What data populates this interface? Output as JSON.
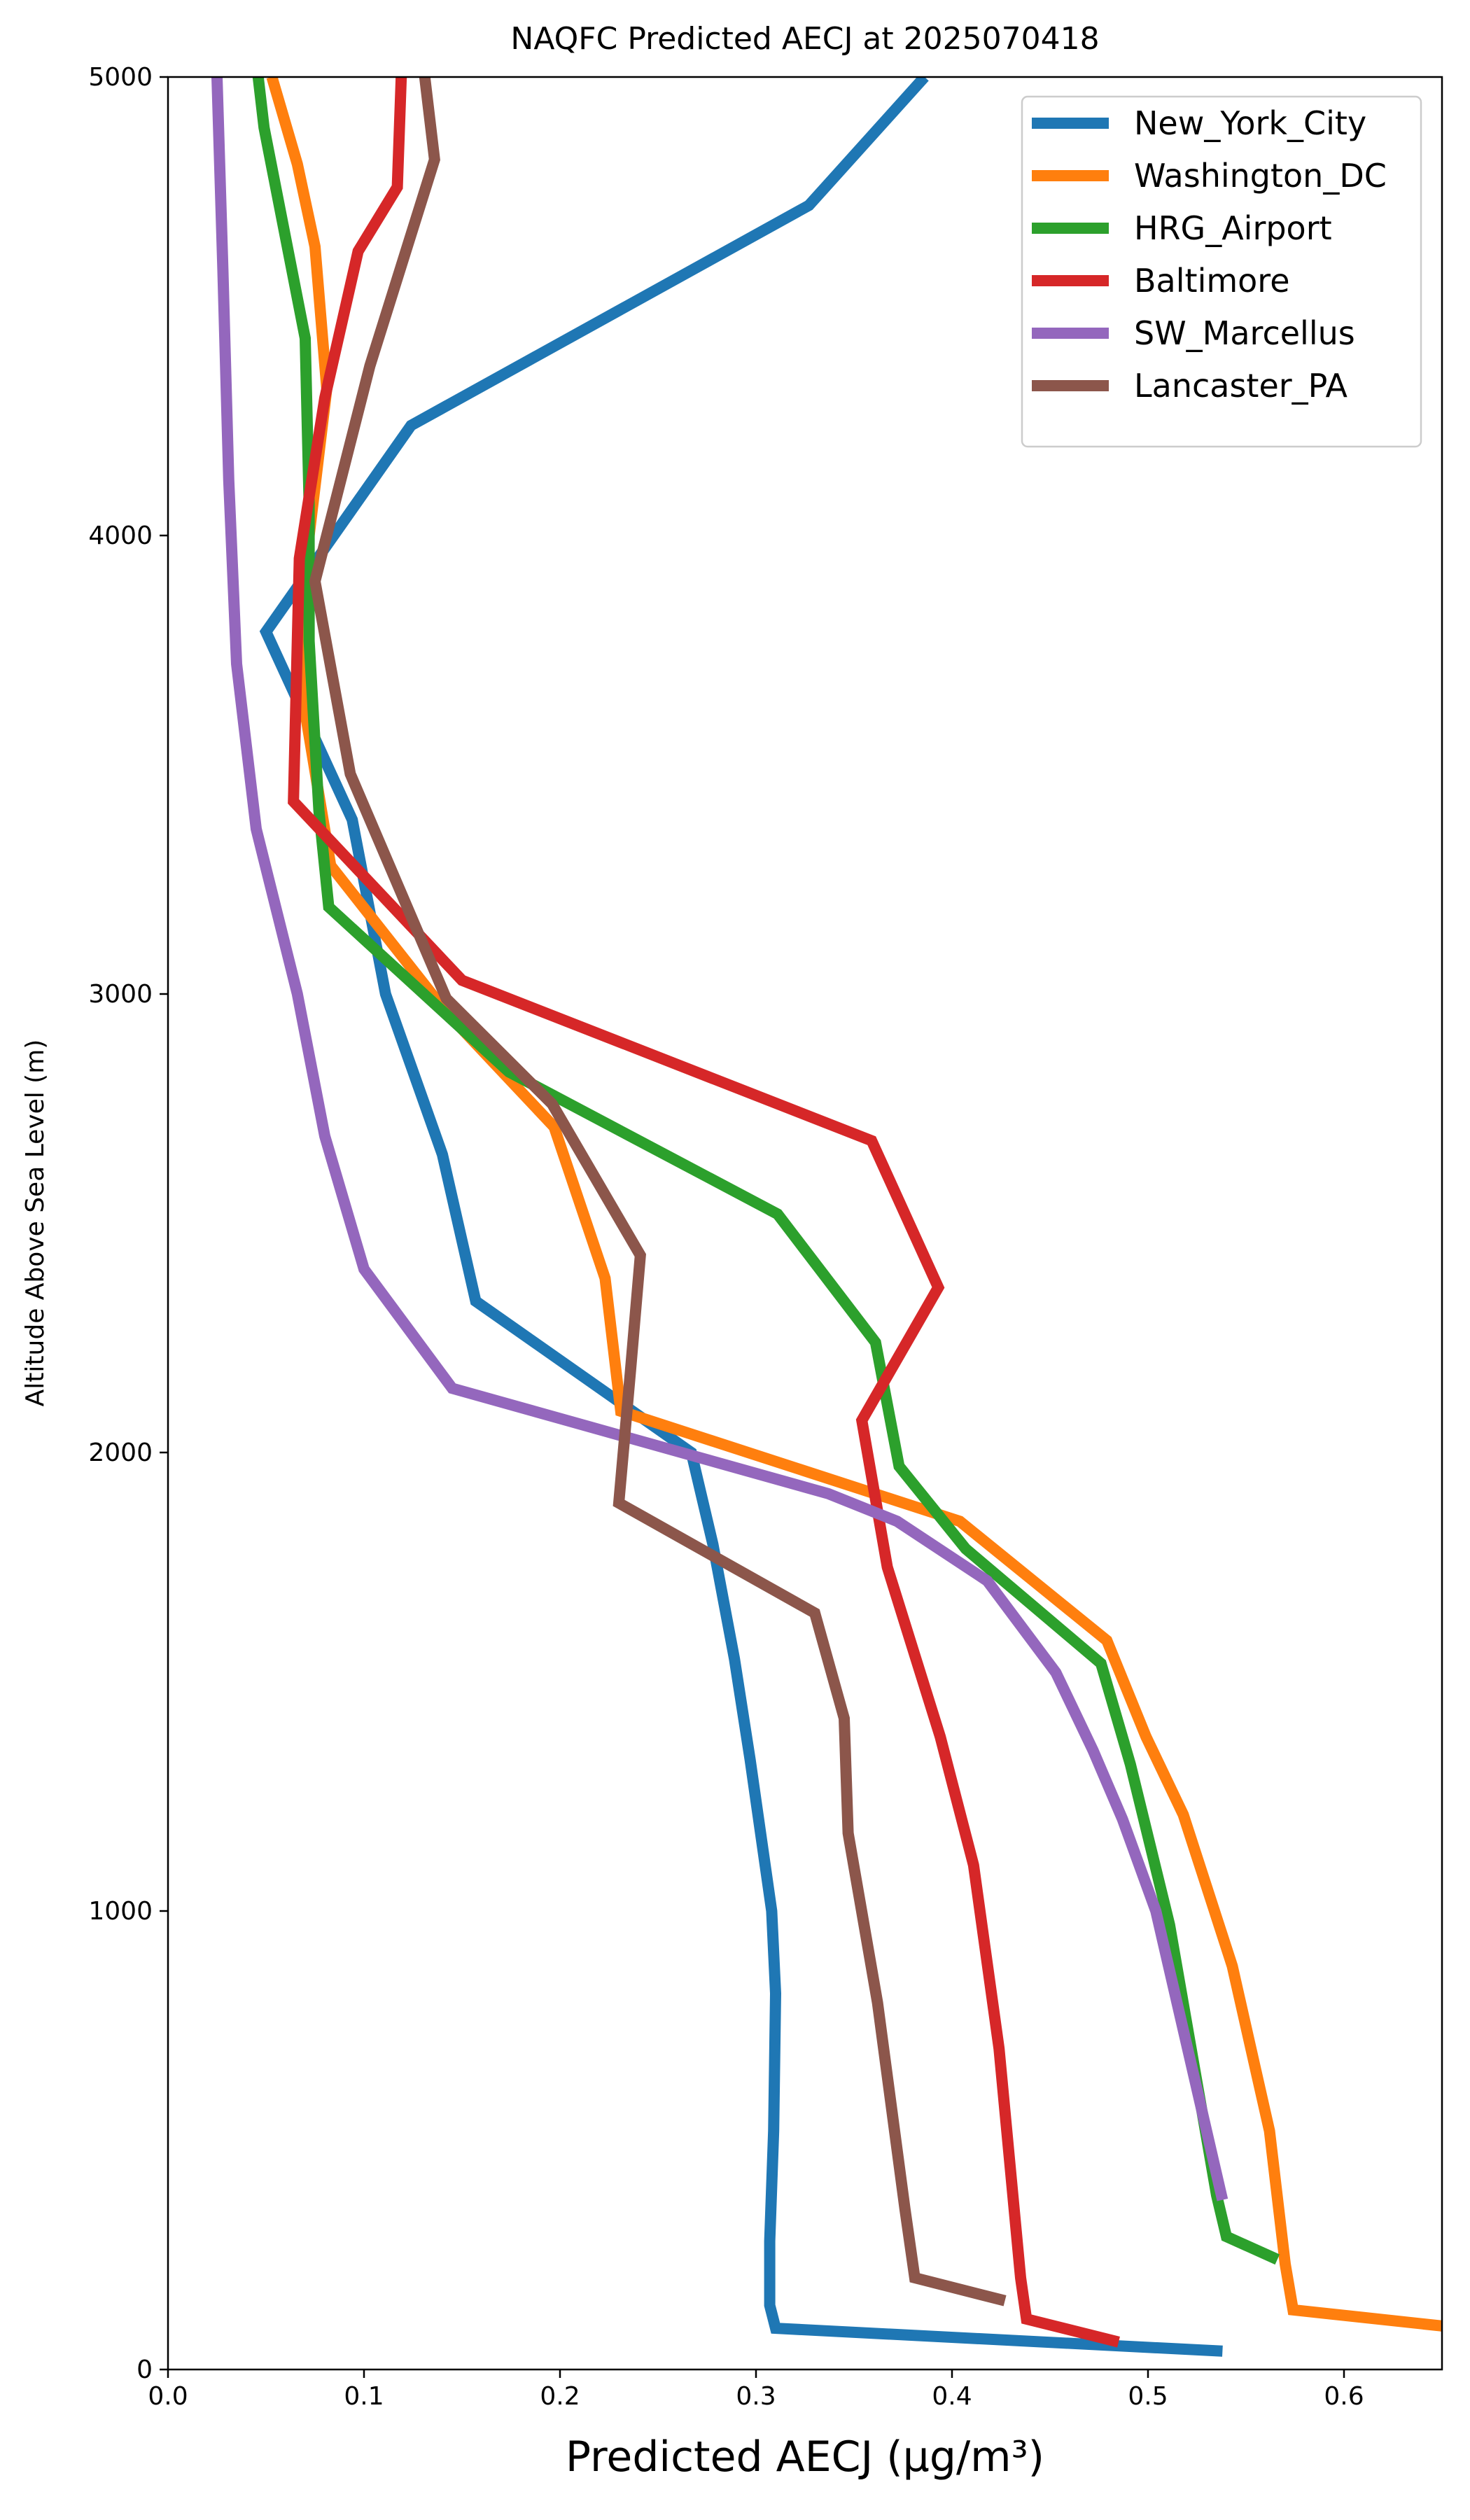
{
  "chart_data": {
    "type": "line",
    "title": "NAQFC Predicted AECJ at 2025070418",
    "xlabel": "Predicted AECJ (μg/m³)",
    "ylabel": "Altitude Above Sea Level (m)",
    "xlim": [
      0.0,
      0.65
    ],
    "ylim": [
      0,
      5000
    ],
    "xticks": [
      0.0,
      0.1,
      0.2,
      0.3,
      0.4,
      0.5,
      0.6
    ],
    "xtick_labels": [
      "0.0",
      "0.1",
      "0.2",
      "0.3",
      "0.4",
      "0.5",
      "0.6"
    ],
    "yticks": [
      0,
      1000,
      2000,
      3000,
      4000,
      5000
    ],
    "ytick_labels": [
      "0",
      "1000",
      "2000",
      "3000",
      "4000",
      "5000"
    ],
    "legend_position": "top-right",
    "grid": false,
    "series": [
      {
        "name": "New_York_City",
        "color": "#1f77b4",
        "points": [
          [
            0.538,
            40
          ],
          [
            0.31,
            90
          ],
          [
            0.307,
            140
          ],
          [
            0.307,
            280
          ],
          [
            0.309,
            520
          ],
          [
            0.31,
            820
          ],
          [
            0.308,
            1000
          ],
          [
            0.303,
            1150
          ],
          [
            0.297,
            1330
          ],
          [
            0.289,
            1550
          ],
          [
            0.278,
            1800
          ],
          [
            0.267,
            2000
          ],
          [
            0.157,
            2330
          ],
          [
            0.14,
            2650
          ],
          [
            0.111,
            3000
          ],
          [
            0.094,
            3380
          ],
          [
            0.05,
            3790
          ],
          [
            0.124,
            4240
          ],
          [
            0.327,
            4720
          ],
          [
            0.386,
            5000
          ]
        ]
      },
      {
        "name": "Washington_DC",
        "color": "#ff7f0e",
        "points": [
          [
            0.65,
            95
          ],
          [
            0.574,
            130
          ],
          [
            0.57,
            230
          ],
          [
            0.562,
            520
          ],
          [
            0.543,
            880
          ],
          [
            0.518,
            1210
          ],
          [
            0.499,
            1380
          ],
          [
            0.479,
            1590
          ],
          [
            0.404,
            1850
          ],
          [
            0.231,
            2090
          ],
          [
            0.223,
            2380
          ],
          [
            0.197,
            2710
          ],
          [
            0.142,
            2960
          ],
          [
            0.083,
            3280
          ],
          [
            0.069,
            3640
          ],
          [
            0.072,
            4000
          ],
          [
            0.081,
            4320
          ],
          [
            0.075,
            4630
          ],
          [
            0.066,
            4810
          ],
          [
            0.053,
            5000
          ]
        ]
      },
      {
        "name": "HRG_Airport",
        "color": "#2ca02c",
        "points": [
          [
            0.566,
            240
          ],
          [
            0.54,
            290
          ],
          [
            0.535,
            380
          ],
          [
            0.511,
            970
          ],
          [
            0.491,
            1320
          ],
          [
            0.476,
            1540
          ],
          [
            0.407,
            1790
          ],
          [
            0.373,
            1970
          ],
          [
            0.361,
            2240
          ],
          [
            0.311,
            2520
          ],
          [
            0.174,
            2830
          ],
          [
            0.082,
            3190
          ],
          [
            0.077,
            3400
          ],
          [
            0.072,
            3770
          ],
          [
            0.072,
            4070
          ],
          [
            0.07,
            4430
          ],
          [
            0.049,
            4890
          ],
          [
            0.046,
            5000
          ]
        ]
      },
      {
        "name": "Baltimore",
        "color": "#d62728",
        "points": [
          [
            0.485,
            60
          ],
          [
            0.438,
            110
          ],
          [
            0.435,
            200
          ],
          [
            0.424,
            700
          ],
          [
            0.411,
            1100
          ],
          [
            0.394,
            1380
          ],
          [
            0.367,
            1750
          ],
          [
            0.354,
            2070
          ],
          [
            0.393,
            2360
          ],
          [
            0.359,
            2680
          ],
          [
            0.15,
            3030
          ],
          [
            0.064,
            3420
          ],
          [
            0.067,
            3950
          ],
          [
            0.08,
            4300
          ],
          [
            0.097,
            4620
          ],
          [
            0.117,
            4760
          ],
          [
            0.119,
            5000
          ]
        ]
      },
      {
        "name": "SW_Marcellus",
        "color": "#9467bd",
        "points": [
          [
            0.538,
            370
          ],
          [
            0.504,
            1000
          ],
          [
            0.487,
            1200
          ],
          [
            0.472,
            1350
          ],
          [
            0.453,
            1520
          ],
          [
            0.418,
            1720
          ],
          [
            0.372,
            1850
          ],
          [
            0.337,
            1910
          ],
          [
            0.145,
            2140
          ],
          [
            0.1,
            2400
          ],
          [
            0.08,
            2690
          ],
          [
            0.066,
            3000
          ],
          [
            0.045,
            3360
          ],
          [
            0.035,
            3720
          ],
          [
            0.031,
            4120
          ],
          [
            0.028,
            4580
          ],
          [
            0.025,
            5000
          ]
        ]
      },
      {
        "name": "Lancaster_PA",
        "color": "#8c564b",
        "points": [
          [
            0.427,
            150
          ],
          [
            0.381,
            200
          ],
          [
            0.376,
            350
          ],
          [
            0.362,
            800
          ],
          [
            0.347,
            1170
          ],
          [
            0.345,
            1420
          ],
          [
            0.33,
            1650
          ],
          [
            0.23,
            1890
          ],
          [
            0.236,
            2180
          ],
          [
            0.241,
            2430
          ],
          [
            0.196,
            2760
          ],
          [
            0.142,
            2990
          ],
          [
            0.093,
            3480
          ],
          [
            0.075,
            3900
          ],
          [
            0.103,
            4370
          ],
          [
            0.136,
            4820
          ],
          [
            0.131,
            5000
          ]
        ]
      }
    ]
  }
}
